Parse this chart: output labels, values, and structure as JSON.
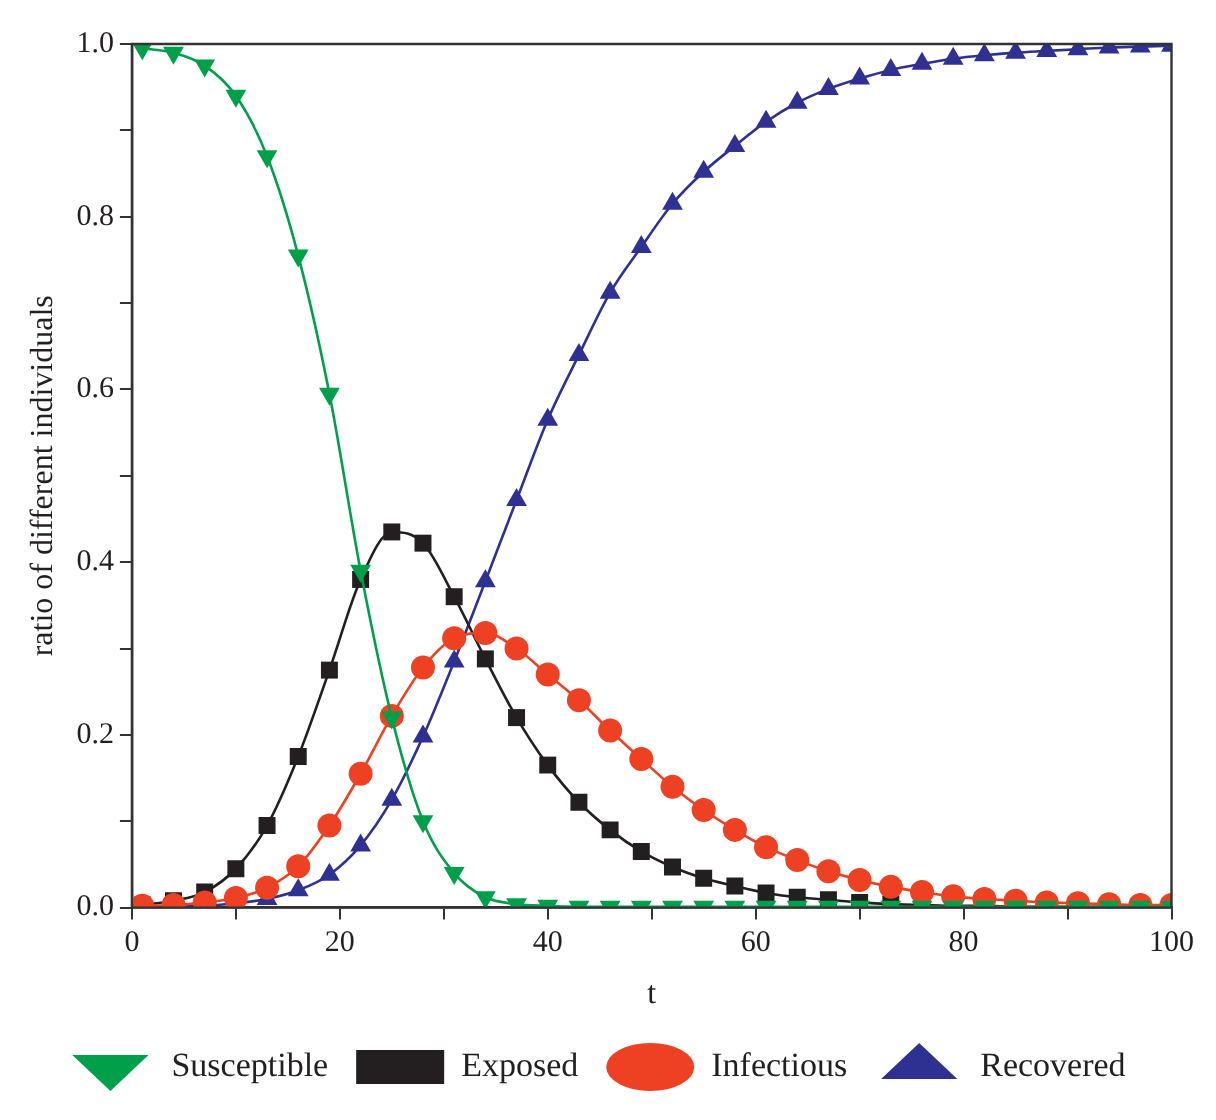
{
  "chart_data": {
    "type": "line",
    "xlabel": "t",
    "ylabel": "ratio of different individuals",
    "x": [
      1,
      4,
      7,
      10,
      13,
      16,
      19,
      22,
      25,
      28,
      31,
      34,
      37,
      40,
      43,
      46,
      49,
      52,
      55,
      58,
      61,
      64,
      67,
      70,
      73,
      76,
      79,
      82,
      85,
      88,
      91,
      94,
      97,
      100
    ],
    "xlim": [
      0,
      100
    ],
    "xticks": [
      0,
      {
        "value": 10,
        "label": null
      },
      20,
      {
        "value": 30,
        "label": null
      },
      40,
      {
        "value": 50,
        "label": null
      },
      60,
      {
        "value": 70,
        "label": null
      },
      80,
      {
        "value": 90,
        "label": null
      },
      100
    ],
    "ylim": [
      0,
      1
    ],
    "yticks": [
      {
        "value": 0,
        "label": "0.0"
      },
      {
        "value": 0.1,
        "label": null
      },
      {
        "value": 0.2,
        "label": "0.2"
      },
      {
        "value": 0.3,
        "label": null
      },
      {
        "value": 0.4,
        "label": "0.4"
      },
      {
        "value": 0.5,
        "label": null
      },
      {
        "value": 0.6,
        "label": "0.6"
      },
      {
        "value": 0.7,
        "label": null
      },
      {
        "value": 0.8,
        "label": "0.8"
      },
      {
        "value": 0.9,
        "label": null
      },
      {
        "value": 1,
        "label": "1.0"
      }
    ],
    "grid": false,
    "legend": "bottom",
    "line_style": "solid",
    "series": [
      {
        "name": "Susceptible",
        "color": "#00a04a",
        "marker": "triangle-down",
        "values": [
          0.995,
          0.99,
          0.975,
          0.94,
          0.87,
          0.755,
          0.595,
          0.39,
          0.22,
          0.1,
          0.04,
          0.012,
          0.004,
          0.002,
          0.001,
          0.001,
          0.001,
          0.001,
          0.001,
          0.001,
          0.001,
          0.001,
          0.001,
          0.001,
          0.001,
          0.001,
          0.001,
          0.001,
          0.001,
          0.001,
          0.001,
          0.001,
          0.001,
          0.001
        ]
      },
      {
        "name": "Exposed",
        "color": "#231f20",
        "marker": "square",
        "values": [
          0.003,
          0.008,
          0.018,
          0.045,
          0.095,
          0.175,
          0.275,
          0.38,
          0.435,
          0.422,
          0.36,
          0.288,
          0.22,
          0.165,
          0.122,
          0.09,
          0.065,
          0.047,
          0.034,
          0.025,
          0.017,
          0.012,
          0.009,
          0.006,
          0.004,
          0.003,
          0.002,
          0.002,
          0.001,
          0.001,
          0.001,
          0.001,
          0.001,
          0.001
        ]
      },
      {
        "name": "Infectious",
        "color": "#ee4022",
        "marker": "circle",
        "values": [
          0.002,
          0.003,
          0.006,
          0.011,
          0.023,
          0.048,
          0.095,
          0.155,
          0.222,
          0.278,
          0.312,
          0.318,
          0.3,
          0.27,
          0.24,
          0.205,
          0.172,
          0.14,
          0.113,
          0.09,
          0.07,
          0.055,
          0.042,
          0.032,
          0.024,
          0.018,
          0.013,
          0.01,
          0.008,
          0.006,
          0.005,
          0.004,
          0.003,
          0.003
        ]
      },
      {
        "name": "Recovered",
        "color": "#2e3192",
        "marker": "triangle",
        "values": [
          0,
          0.001,
          0.002,
          0.005,
          0.01,
          0.02,
          0.038,
          0.072,
          0.125,
          0.198,
          0.285,
          0.378,
          0.472,
          0.565,
          0.64,
          0.712,
          0.765,
          0.815,
          0.852,
          0.882,
          0.91,
          0.932,
          0.948,
          0.96,
          0.97,
          0.977,
          0.983,
          0.987,
          0.99,
          0.992,
          0.994,
          0.996,
          0.997,
          0.998
        ]
      }
    ]
  }
}
